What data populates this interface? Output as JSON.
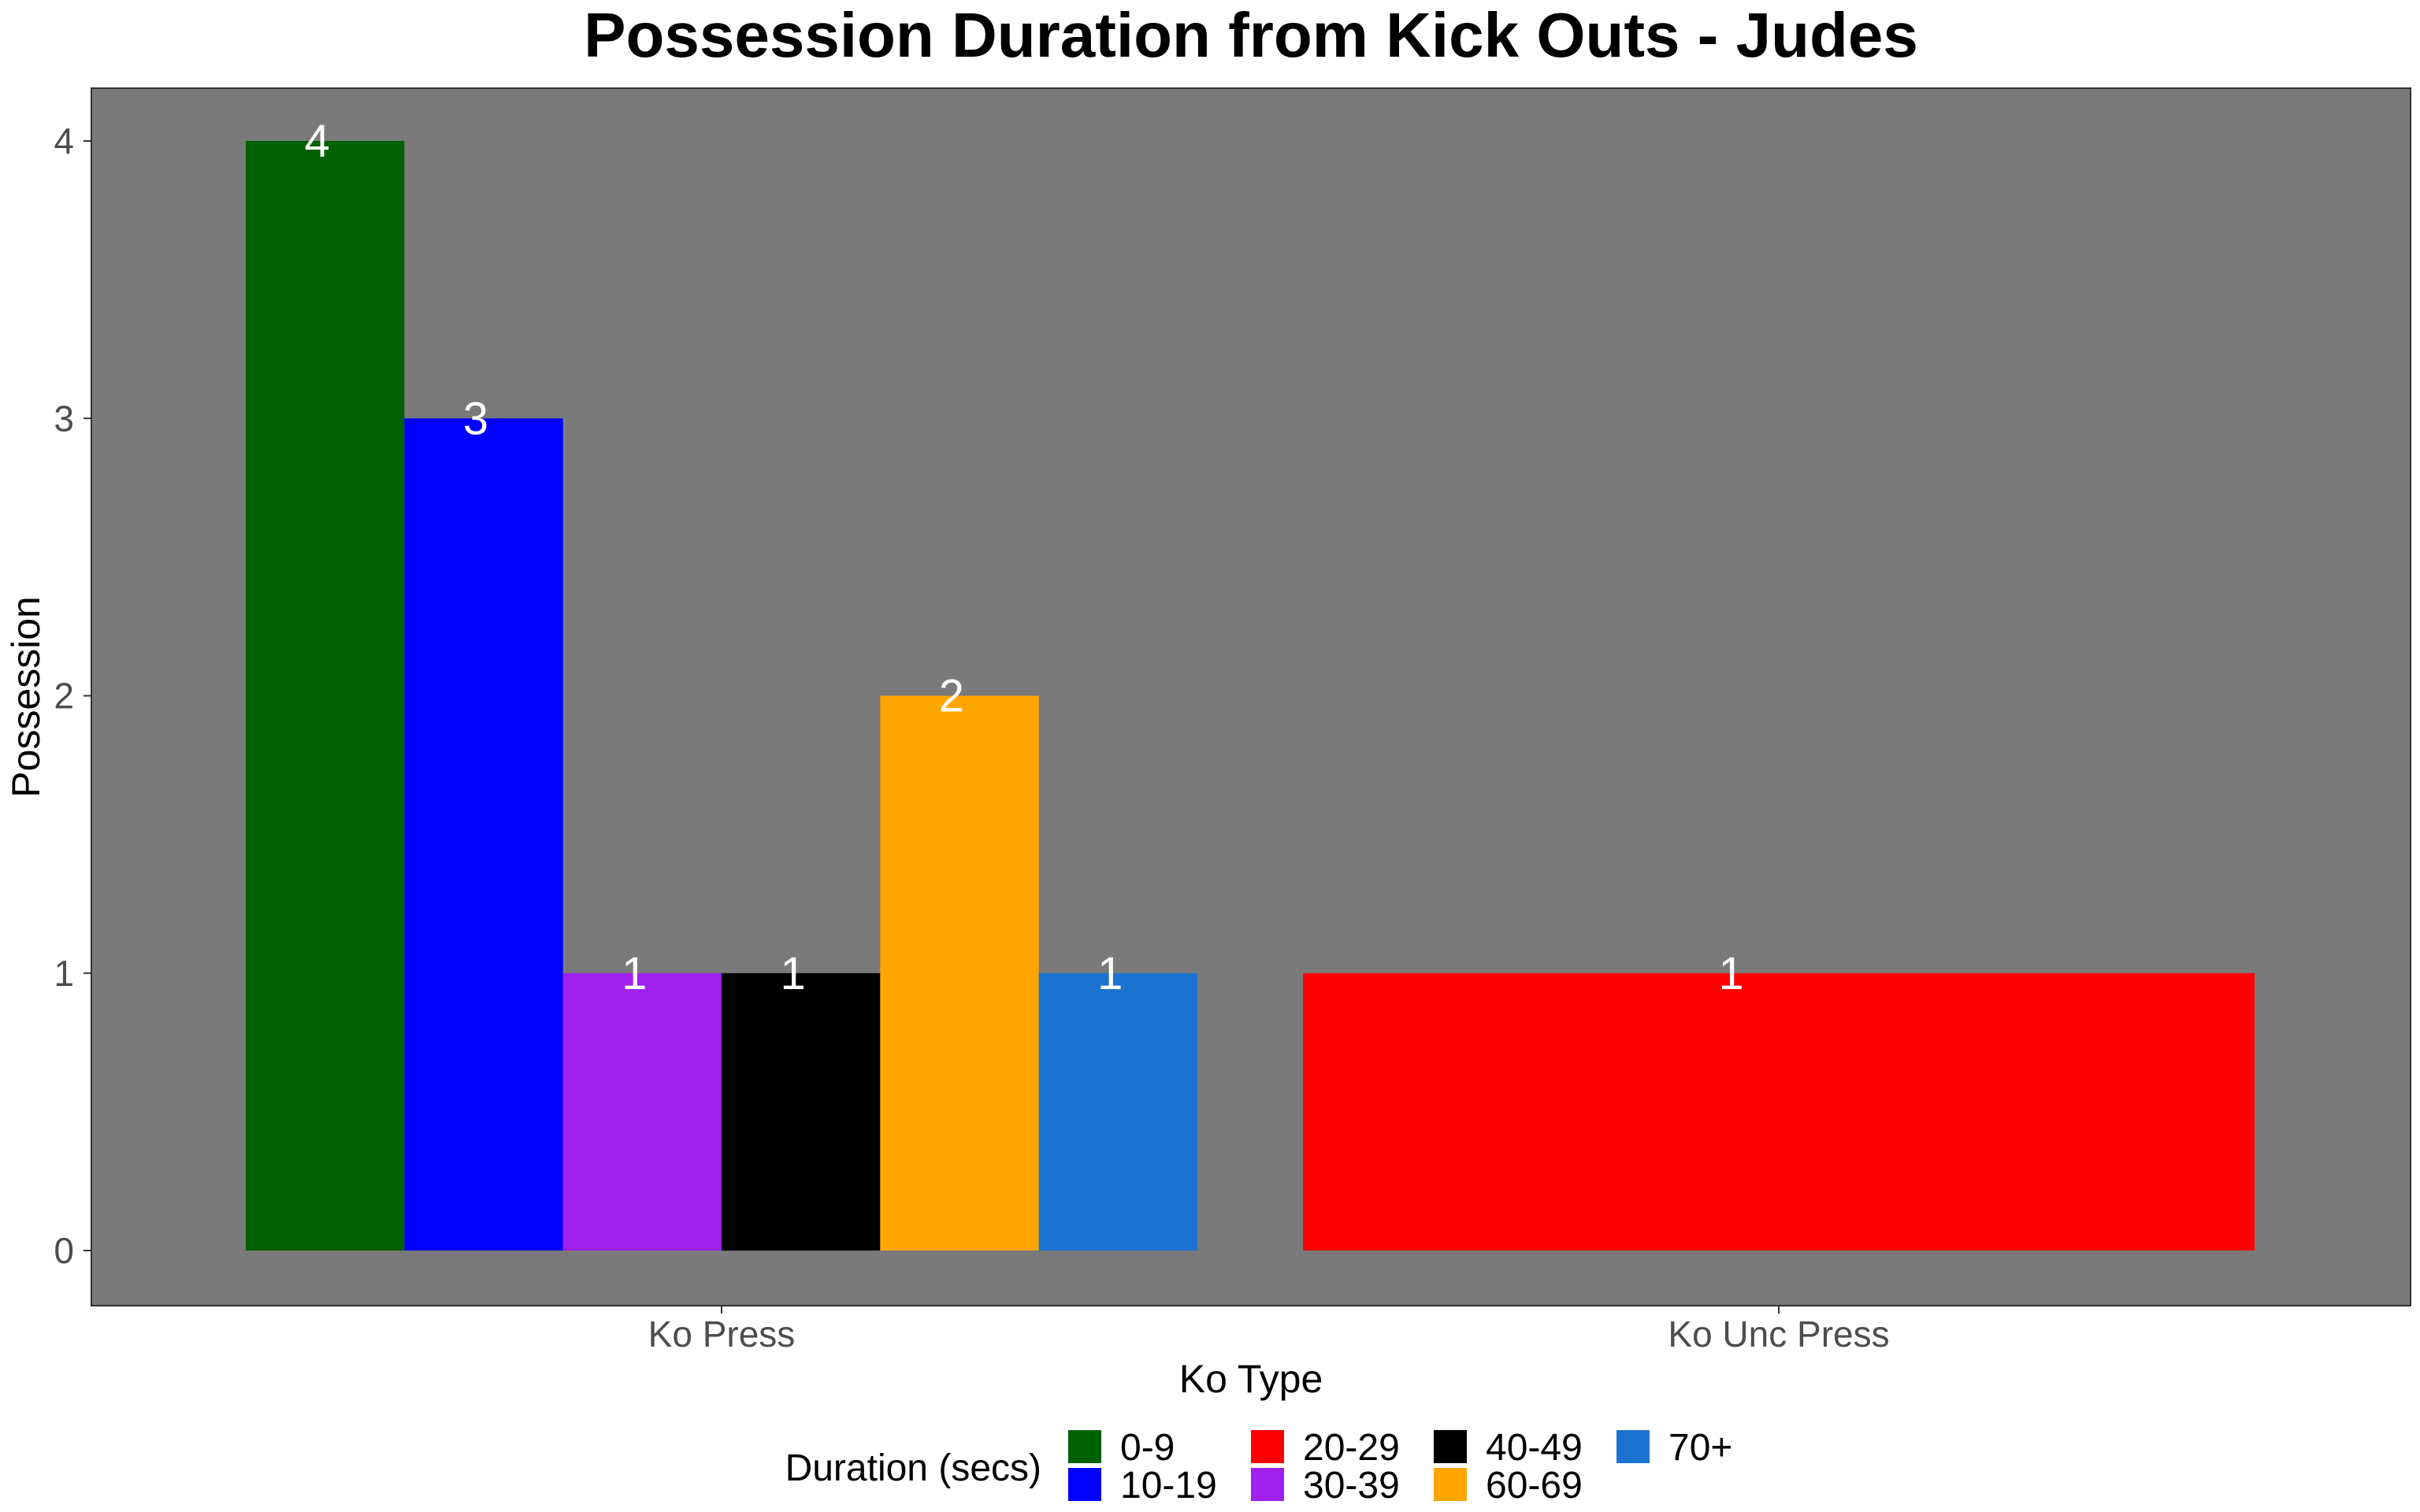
{
  "chart_data": {
    "type": "bar",
    "title": "Possession Duration from Kick Outs - Judes",
    "xlabel": "Ko Type",
    "ylabel": "Possession",
    "ylim": [
      0,
      4
    ],
    "y_ticks": [
      "0",
      "1",
      "2",
      "3",
      "4"
    ],
    "categories": [
      "Ko Press",
      "Ko Unc Press"
    ],
    "grid": false,
    "legend_position": "bottom",
    "legend_title": "Duration (secs)",
    "legend": [
      {
        "label": "0-9",
        "color": "#006100"
      },
      {
        "label": "10-19",
        "color": "#0000ff"
      },
      {
        "label": "20-29",
        "color": "#ff0000"
      },
      {
        "label": "30-39",
        "color": "#a020f0"
      },
      {
        "label": "40-49",
        "color": "#000000"
      },
      {
        "label": "60-69",
        "color": "#ffa500"
      },
      {
        "label": "70+",
        "color": "#1c73cf"
      }
    ],
    "bars": [
      {
        "category": "Ko Press",
        "group": "0-9",
        "value": 4,
        "label": "4",
        "color": "#006100"
      },
      {
        "category": "Ko Press",
        "group": "10-19",
        "value": 3,
        "label": "3",
        "color": "#0000ff"
      },
      {
        "category": "Ko Press",
        "group": "30-39",
        "value": 1,
        "label": "1",
        "color": "#a020f0"
      },
      {
        "category": "Ko Press",
        "group": "40-49",
        "value": 1,
        "label": "1",
        "color": "#000000"
      },
      {
        "category": "Ko Press",
        "group": "60-69",
        "value": 2,
        "label": "2",
        "color": "#ffa500"
      },
      {
        "category": "Ko Press",
        "group": "70+",
        "value": 1,
        "label": "1",
        "color": "#1c73cf"
      },
      {
        "category": "Ko Unc Press",
        "group": "20-29",
        "value": 1,
        "label": "1",
        "color": "#ff0000"
      }
    ],
    "panel_color": "#7a7a7a"
  }
}
